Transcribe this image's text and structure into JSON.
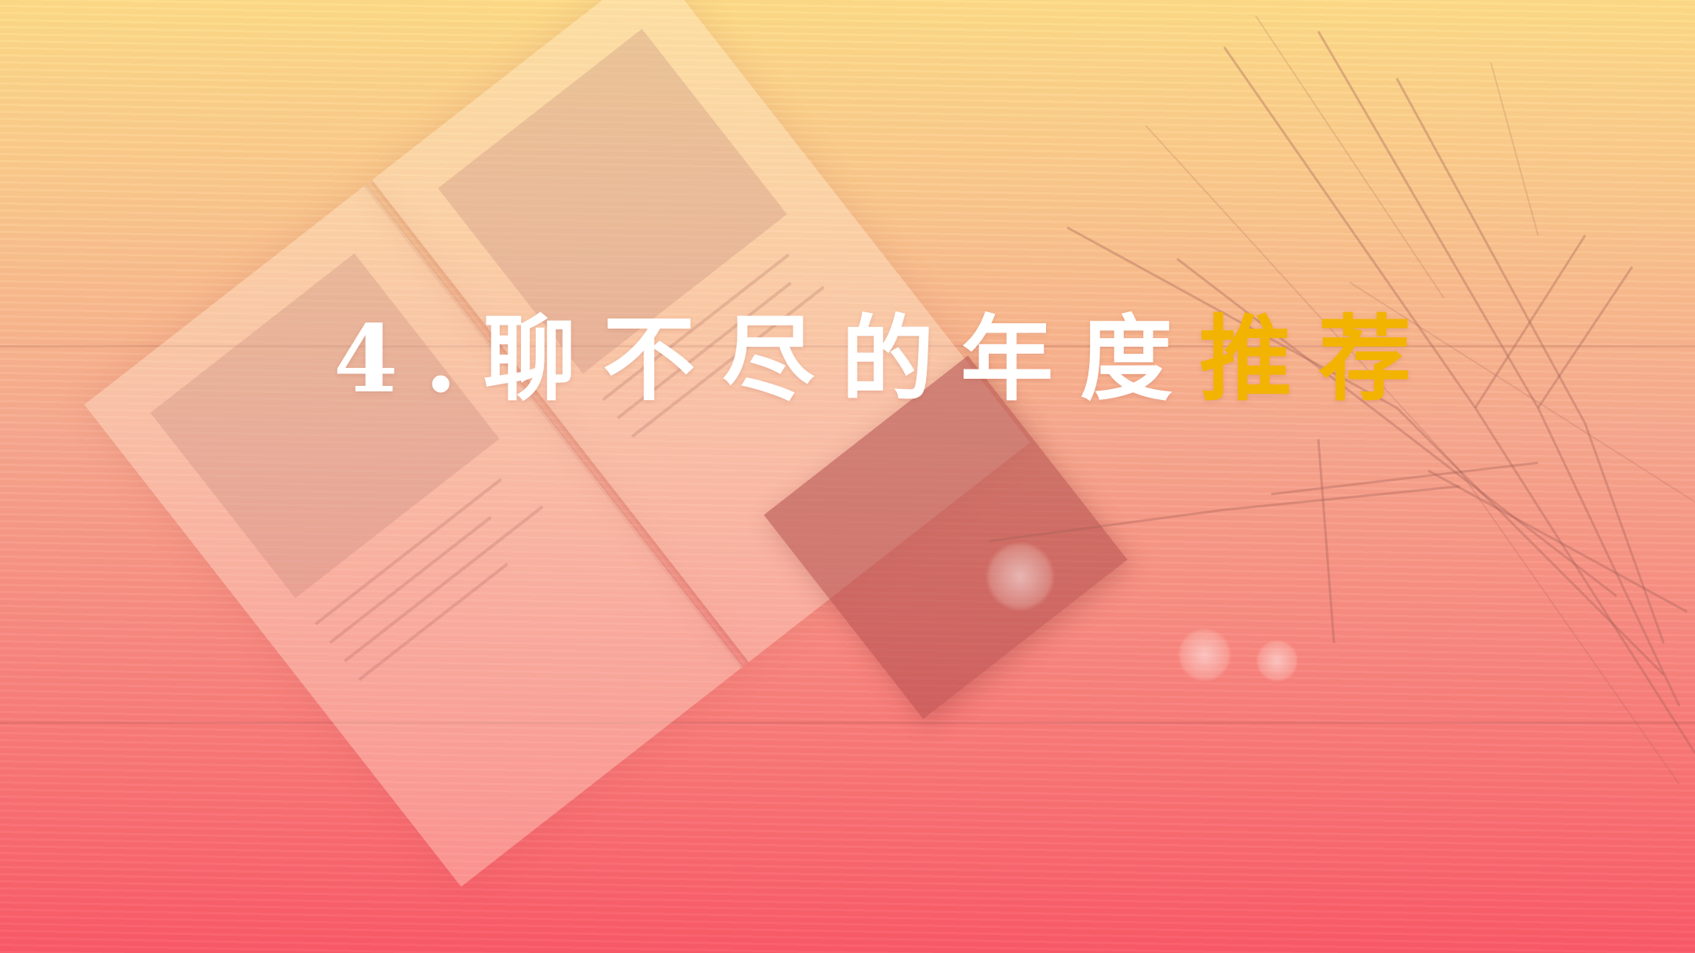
{
  "slide": {
    "title_main": "4.聊不尽的年度",
    "title_highlight": "推荐"
  },
  "colors": {
    "title_main": "#FFFFFF",
    "title_highlight": "#F2B400",
    "gradient_top": "#FDDC87",
    "gradient_bottom": "#FA5866"
  }
}
